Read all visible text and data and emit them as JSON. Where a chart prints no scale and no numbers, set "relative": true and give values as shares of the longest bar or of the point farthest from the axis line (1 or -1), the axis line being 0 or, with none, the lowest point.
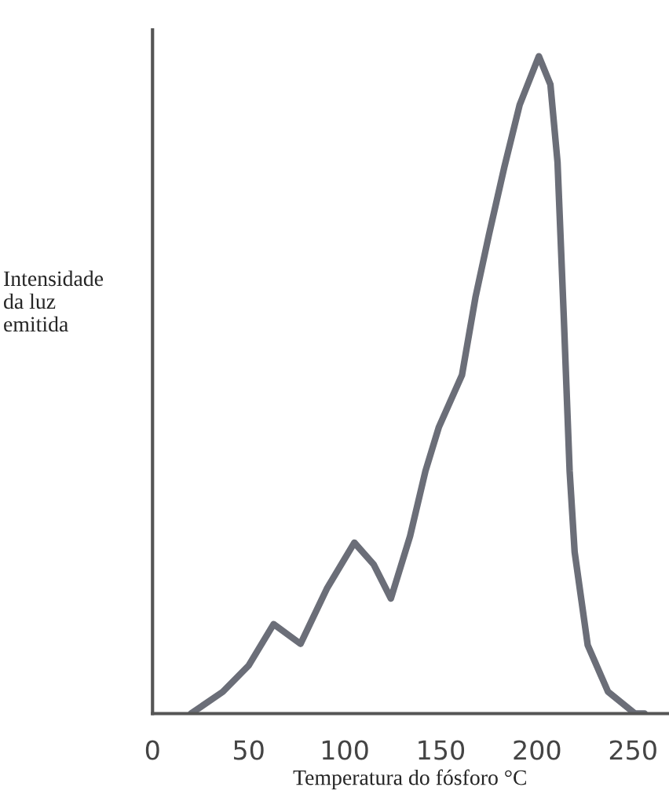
{
  "chart_data": {
    "type": "line",
    "relative": true,
    "xlabel": "Temperatura do fósforo °C",
    "ylabel": "Intensidade\nda luz\nemitida",
    "xlim": [
      0,
      268
    ],
    "xticks": [
      0,
      50,
      100,
      150,
      200,
      250
    ],
    "grid": false,
    "legend": false,
    "series": [
      {
        "color": "#6b6e78",
        "x": [
          20,
          36.5,
          50,
          63,
          77,
          90.7,
          105,
          115,
          124,
          134,
          142,
          149,
          161,
          168,
          175,
          183,
          191,
          201,
          207,
          210.7,
          214,
          217,
          219.6,
          226.4,
          237,
          251,
          256
        ],
        "values": [
          0,
          0.033,
          0.073,
          0.136,
          0.106,
          0.19,
          0.26,
          0.227,
          0.175,
          0.27,
          0.369,
          0.436,
          0.515,
          0.633,
          0.728,
          0.831,
          0.926,
          1.0,
          0.957,
          0.839,
          0.6,
          0.369,
          0.246,
          0.104,
          0.033,
          0,
          0
        ]
      }
    ]
  }
}
